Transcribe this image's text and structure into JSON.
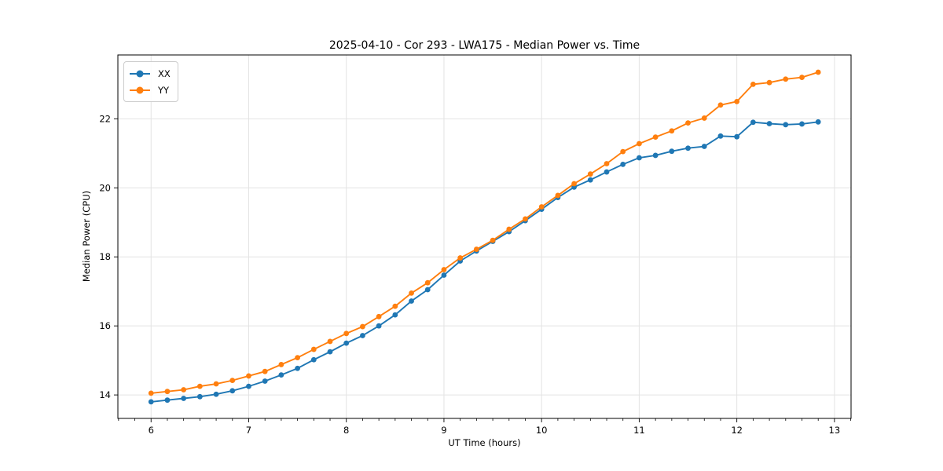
{
  "chart_data": {
    "type": "line",
    "title": "2025-04-10 - Cor 293 - LWA175 - Median Power vs. Time",
    "xlabel": "UT Time (hours)",
    "ylabel": "Median Power (CPU)",
    "xlim": [
      5.66,
      13.17
    ],
    "ylim": [
      13.32,
      23.85
    ],
    "xticks": [
      6,
      7,
      8,
      9,
      10,
      11,
      12,
      13
    ],
    "yticks": [
      14,
      16,
      18,
      20,
      22
    ],
    "x_minor_step": 0.16667,
    "grid": true,
    "grid_color": "#e3e3e3",
    "legend_position": "upper-left",
    "marker": "circle",
    "x": [
      6.0,
      6.1667,
      6.3333,
      6.5,
      6.6667,
      6.8333,
      7.0,
      7.1667,
      7.3333,
      7.5,
      7.6667,
      7.8333,
      8.0,
      8.1667,
      8.3333,
      8.5,
      8.6667,
      8.8333,
      9.0,
      9.1667,
      9.3333,
      9.5,
      9.6667,
      9.8333,
      10.0,
      10.1667,
      10.3333,
      10.5,
      10.6667,
      10.8333,
      11.0,
      11.1667,
      11.3333,
      11.5,
      11.6667,
      11.8333,
      12.0,
      12.1667,
      12.3333,
      12.5,
      12.6667,
      12.8333
    ],
    "series": [
      {
        "name": "XX",
        "color": "#1f77b4",
        "values": [
          13.8,
          13.85,
          13.9,
          13.95,
          14.02,
          14.12,
          14.25,
          14.4,
          14.58,
          14.77,
          15.02,
          15.25,
          15.5,
          15.72,
          16.0,
          16.32,
          16.72,
          17.05,
          17.47,
          17.88,
          18.17,
          18.45,
          18.73,
          19.05,
          19.38,
          19.72,
          20.02,
          20.23,
          20.46,
          20.68,
          20.87,
          20.94,
          21.06,
          21.15,
          21.2,
          21.5,
          21.48,
          21.9,
          21.86,
          21.83,
          21.85,
          21.91
        ]
      },
      {
        "name": "YY",
        "color": "#ff7f0e",
        "values": [
          14.05,
          14.1,
          14.15,
          14.25,
          14.32,
          14.42,
          14.55,
          14.68,
          14.88,
          15.08,
          15.32,
          15.55,
          15.78,
          15.98,
          16.27,
          16.57,
          16.95,
          17.25,
          17.63,
          17.97,
          18.22,
          18.48,
          18.8,
          19.1,
          19.45,
          19.78,
          20.12,
          20.4,
          20.7,
          21.05,
          21.28,
          21.47,
          21.65,
          21.88,
          22.02,
          22.4,
          22.5,
          23.0,
          23.05,
          23.15,
          23.2,
          23.35
        ]
      }
    ]
  }
}
